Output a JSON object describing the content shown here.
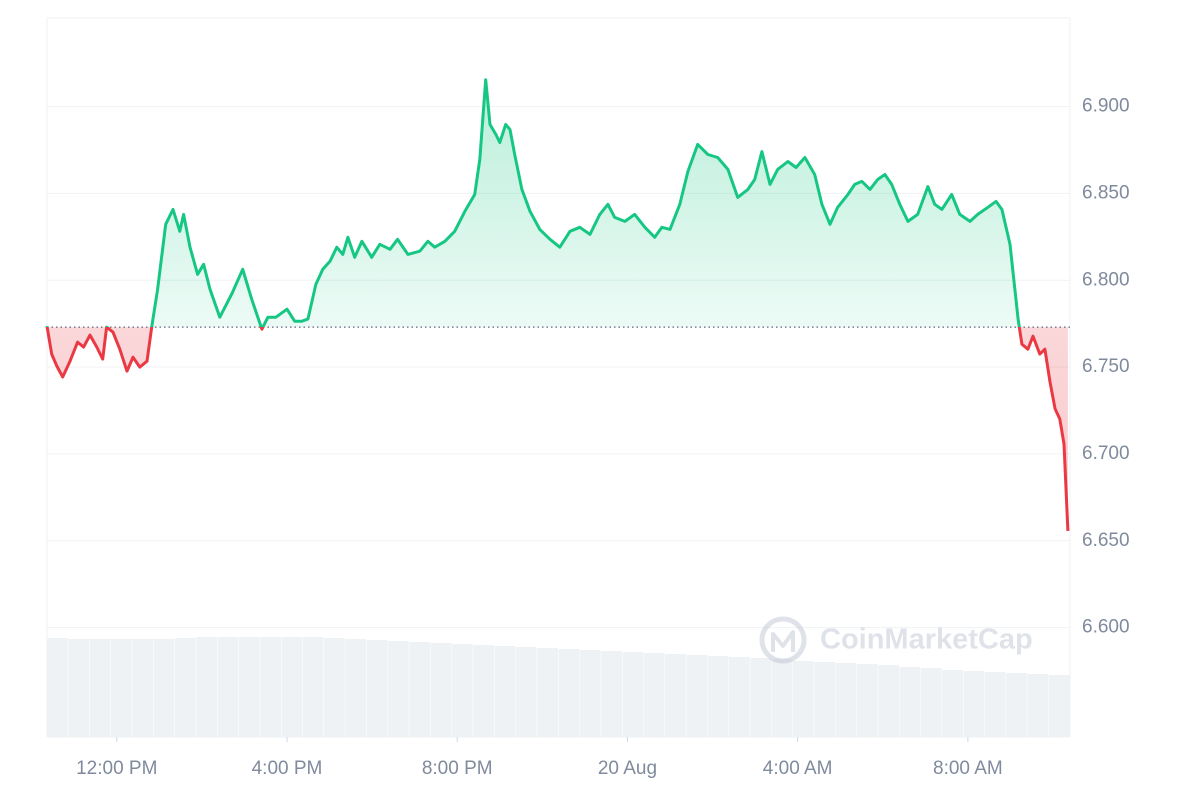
{
  "chart_data": {
    "type": "line",
    "watermark": "CoinMarketCap",
    "x": [
      10.36,
      10.47,
      10.59,
      10.73,
      10.9,
      11.08,
      11.22,
      11.37,
      11.53,
      11.67,
      11.76,
      11.91,
      12.07,
      12.24,
      12.38,
      12.54,
      12.71,
      12.82,
      12.96,
      13.15,
      13.32,
      13.48,
      13.57,
      13.72,
      13.9,
      14.04,
      14.19,
      14.42,
      14.7,
      14.96,
      15.17,
      15.41,
      15.55,
      15.74,
      16.0,
      16.18,
      16.35,
      16.49,
      16.68,
      16.84,
      17.01,
      17.17,
      17.31,
      17.43,
      17.59,
      17.76,
      17.99,
      18.18,
      18.42,
      18.6,
      18.84,
      19.12,
      19.31,
      19.47,
      19.71,
      19.94,
      20.18,
      20.41,
      20.53,
      20.67,
      20.77,
      20.91,
      21.0,
      21.14,
      21.24,
      21.35,
      21.52,
      21.71,
      21.94,
      22.18,
      22.41,
      22.65,
      22.88,
      23.12,
      23.35,
      23.54,
      23.7,
      23.94,
      24.17,
      24.41,
      24.64,
      24.81,
      25.0,
      25.23,
      25.42,
      25.65,
      25.89,
      26.12,
      26.36,
      26.59,
      26.83,
      26.99,
      27.16,
      27.35,
      27.53,
      27.77,
      27.96,
      28.17,
      28.4,
      28.57,
      28.76,
      28.94,
      29.18,
      29.34,
      29.51,
      29.7,
      29.88,
      30.05,
      30.21,
      30.4,
      30.59,
      30.82,
      31.06,
      31.22,
      31.39,
      31.62,
      31.81,
      32.05,
      32.23,
      32.47,
      32.66,
      32.8,
      32.99,
      33.18,
      33.27,
      33.41,
      33.53,
      33.69,
      33.81,
      33.93,
      34.05,
      34.16,
      34.26,
      34.35
    ],
    "series": [
      {
        "up_color": "#16c784",
        "down_color": "#ea3943",
        "values": [
          6.7736,
          6.7575,
          6.7506,
          6.7443,
          6.7534,
          6.7644,
          6.7615,
          6.7684,
          6.7615,
          6.7546,
          6.773,
          6.7701,
          6.7603,
          6.7477,
          6.7557,
          6.75,
          6.7534,
          6.773,
          6.7948,
          6.8322,
          6.8408,
          6.8282,
          6.8379,
          6.819,
          6.8034,
          6.8092,
          6.7948,
          6.7787,
          6.792,
          6.8063,
          6.7891,
          6.7718,
          6.7787,
          6.7787,
          6.7833,
          6.7764,
          6.7764,
          6.7776,
          6.7977,
          6.8063,
          6.8109,
          6.819,
          6.8149,
          6.8247,
          6.8132,
          6.8224,
          6.8132,
          6.8207,
          6.8178,
          6.8236,
          6.8149,
          6.8167,
          6.8224,
          6.819,
          6.8224,
          6.8282,
          6.8397,
          6.8494,
          6.8695,
          6.9155,
          6.8897,
          6.8839,
          6.8793,
          6.8897,
          6.8868,
          6.8724,
          6.8523,
          6.8397,
          6.8293,
          6.8236,
          6.819,
          6.8282,
          6.8305,
          6.8264,
          6.8379,
          6.8437,
          6.8362,
          6.8339,
          6.8379,
          6.8305,
          6.8247,
          6.8305,
          6.8293,
          6.8437,
          6.8626,
          6.8782,
          6.8724,
          6.8707,
          6.8638,
          6.8477,
          6.8523,
          6.858,
          6.8741,
          6.8552,
          6.8638,
          6.8684,
          6.8649,
          6.8707,
          6.8609,
          6.8437,
          6.8322,
          6.842,
          6.8494,
          6.8552,
          6.8569,
          6.8523,
          6.858,
          6.8609,
          6.8552,
          6.8437,
          6.8339,
          6.8379,
          6.854,
          6.8437,
          6.8408,
          6.8494,
          6.8379,
          6.8339,
          6.8379,
          6.842,
          6.8454,
          6.8408,
          6.8207,
          6.7776,
          6.7632,
          6.7603,
          6.7678,
          6.7575,
          6.7603,
          6.7414,
          6.7259,
          6.7201,
          6.7057,
          6.6557
        ]
      }
    ],
    "baseline": 6.773,
    "volume": {
      "color": "#eff2f5",
      "values": [
        99,
        98,
        98,
        98,
        98,
        98,
        99,
        100,
        100,
        100,
        100,
        100,
        100,
        99,
        98,
        97,
        96,
        95,
        94,
        93,
        92,
        91,
        90,
        89,
        88,
        87,
        86,
        85,
        84,
        83,
        82,
        81,
        80,
        79,
        78,
        76,
        75,
        74,
        73,
        72,
        70,
        69,
        67,
        66,
        65,
        64,
        63,
        62
      ]
    },
    "xlim": [
      10.36,
      34.4
    ],
    "xticks": [
      {
        "value": 12,
        "label": "12:00 PM"
      },
      {
        "value": 16,
        "label": "4:00 PM"
      },
      {
        "value": 20,
        "label": "8:00 PM"
      },
      {
        "value": 24,
        "label": "20 Aug"
      },
      {
        "value": 28,
        "label": "4:00 AM"
      },
      {
        "value": 32,
        "label": "8:00 AM"
      }
    ],
    "ylim": [
      6.537,
      6.951
    ],
    "yticks": [
      {
        "value": 6.6,
        "label": "6.600"
      },
      {
        "value": 6.65,
        "label": "6.650"
      },
      {
        "value": 6.7,
        "label": "6.700"
      },
      {
        "value": 6.75,
        "label": "6.750"
      },
      {
        "value": 6.8,
        "label": "6.800"
      },
      {
        "value": 6.85,
        "label": "6.850"
      },
      {
        "value": 6.9,
        "label": "6.900"
      }
    ],
    "grid": true
  }
}
